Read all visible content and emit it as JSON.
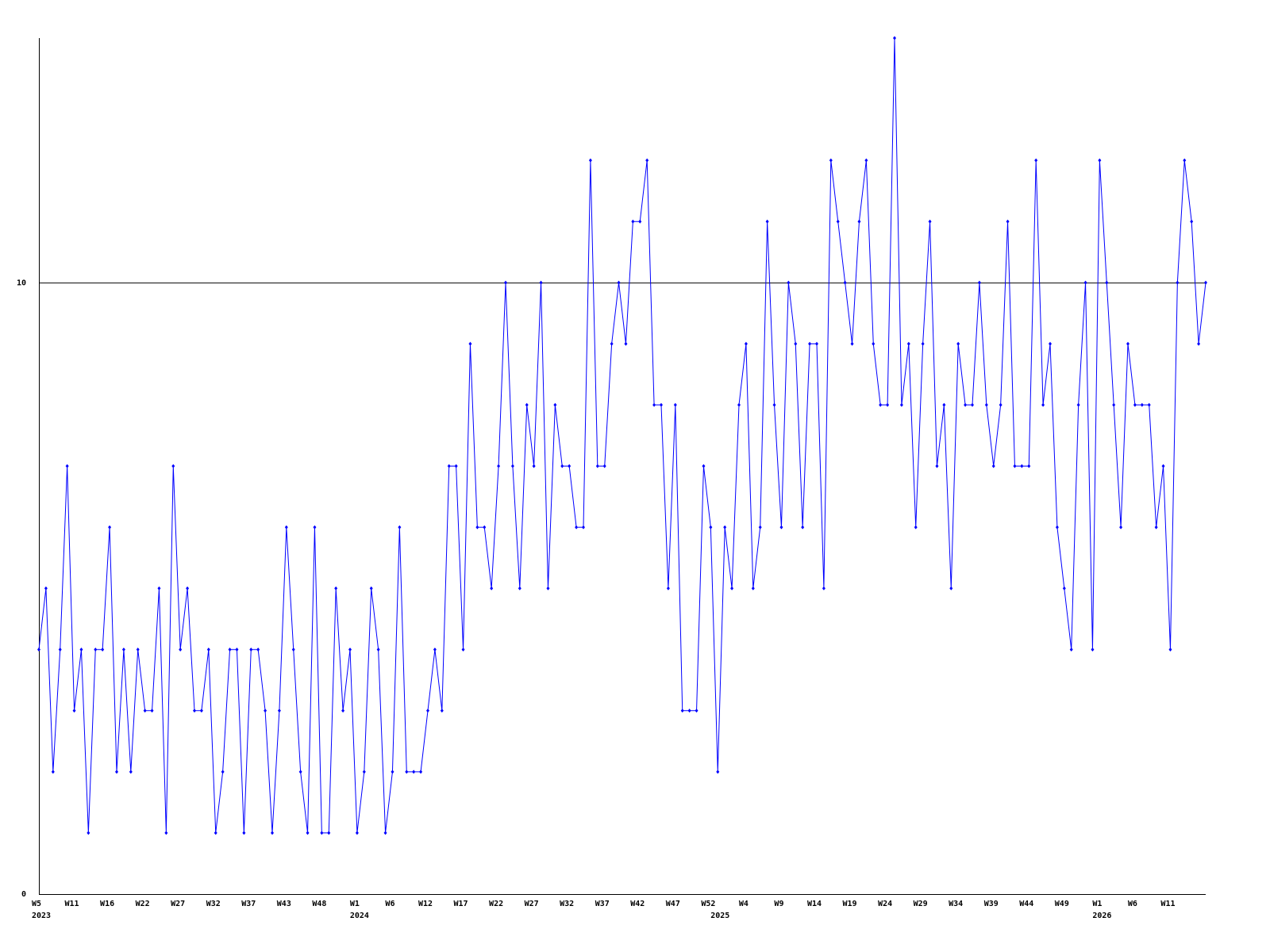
{
  "chart_data": {
    "type": "line",
    "categories": [
      "W5",
      null,
      null,
      null,
      null,
      "W11",
      null,
      null,
      null,
      null,
      "W16",
      null,
      null,
      null,
      null,
      "W22",
      null,
      null,
      null,
      null,
      "W27",
      null,
      null,
      null,
      null,
      "W32",
      null,
      null,
      null,
      null,
      "W37",
      null,
      null,
      null,
      null,
      "W43",
      null,
      null,
      null,
      null,
      "W48",
      null,
      null,
      null,
      null,
      "W1",
      null,
      null,
      null,
      null,
      "W6",
      null,
      null,
      null,
      null,
      "W12",
      null,
      null,
      null,
      null,
      "W17",
      null,
      null,
      null,
      null,
      "W22",
      null,
      null,
      null,
      null,
      "W27",
      null,
      null,
      null,
      null,
      "W32",
      null,
      null,
      null,
      null,
      "W37",
      null,
      null,
      null,
      null,
      "W42",
      null,
      null,
      null,
      null,
      "W47",
      null,
      null,
      null,
      null,
      "W52",
      null,
      null,
      null,
      null,
      "W4",
      null,
      null,
      null,
      null,
      "W9",
      null,
      null,
      null,
      null,
      "W14",
      null,
      null,
      null,
      null,
      "W19",
      null,
      null,
      null,
      null,
      "W24",
      null,
      null,
      null,
      null,
      "W29",
      null,
      null,
      null,
      null,
      "W34",
      null,
      null,
      null,
      null,
      "W39",
      null,
      null,
      null,
      null,
      "W44",
      null,
      null,
      null,
      null,
      "W49",
      null,
      null,
      null,
      null,
      "W1",
      null,
      null,
      null,
      null,
      "W6",
      null,
      null,
      null,
      null,
      "W11",
      null,
      null,
      null,
      null,
      null
    ],
    "years": [
      "2023",
      null,
      null,
      null,
      null,
      null,
      null,
      null,
      null,
      null,
      null,
      null,
      null,
      null,
      null,
      null,
      null,
      null,
      null,
      null,
      null,
      null,
      null,
      null,
      null,
      null,
      null,
      null,
      null,
      null,
      null,
      null,
      null,
      null,
      null,
      null,
      null,
      null,
      null,
      null,
      null,
      null,
      null,
      null,
      null,
      "2024",
      null,
      null,
      null,
      null,
      null,
      null,
      null,
      null,
      null,
      null,
      null,
      null,
      null,
      null,
      null,
      null,
      null,
      null,
      null,
      null,
      null,
      null,
      null,
      null,
      null,
      null,
      null,
      null,
      null,
      null,
      null,
      null,
      null,
      null,
      null,
      null,
      null,
      null,
      null,
      null,
      null,
      null,
      null,
      null,
      null,
      null,
      null,
      null,
      null,
      null,
      "2025",
      null,
      null,
      null,
      null,
      null,
      null,
      null,
      null,
      null,
      null,
      null,
      null,
      null,
      null,
      null,
      null,
      null,
      null,
      null,
      null,
      null,
      null,
      null,
      null,
      null,
      null,
      null,
      null,
      null,
      null,
      null,
      null,
      null,
      null,
      null,
      null,
      null,
      null,
      null,
      null,
      null,
      null,
      null,
      null,
      null,
      null,
      null,
      null,
      null,
      null,
      null,
      null,
      null,
      "2026",
      null,
      null,
      null,
      null,
      null,
      null,
      null,
      null,
      null,
      null,
      null,
      null,
      null,
      null,
      null
    ],
    "values": [
      4,
      5,
      2,
      4,
      7,
      3,
      4,
      1,
      4,
      4,
      6,
      2,
      4,
      2,
      4,
      3,
      3,
      5,
      1,
      7,
      4,
      5,
      3,
      3,
      4,
      1,
      2,
      4,
      4,
      1,
      4,
      4,
      3,
      1,
      3,
      6,
      4,
      2,
      1,
      6,
      1,
      1,
      5,
      3,
      4,
      1,
      2,
      5,
      4,
      1,
      2,
      6,
      2,
      2,
      2,
      3,
      4,
      3,
      7,
      7,
      4,
      9,
      6,
      6,
      5,
      7,
      10,
      7,
      5,
      8,
      7,
      10,
      5,
      8,
      7,
      7,
      6,
      6,
      12,
      7,
      7,
      9,
      10,
      9,
      11,
      11,
      12,
      8,
      8,
      5,
      8,
      3,
      3,
      3,
      7,
      6,
      2,
      6,
      5,
      8,
      9,
      5,
      6,
      11,
      8,
      6,
      10,
      9,
      6,
      9,
      9,
      5,
      12,
      11,
      10,
      9,
      11,
      12,
      9,
      8,
      8,
      14,
      8,
      9,
      6,
      9,
      11,
      7,
      8,
      5,
      9,
      8,
      8,
      10,
      8,
      7,
      8,
      11,
      7,
      7,
      7,
      12,
      8,
      9,
      6,
      5,
      4,
      8,
      10,
      4,
      12,
      10,
      8,
      6,
      9,
      8,
      8,
      8,
      6,
      7,
      4,
      10,
      12,
      11,
      9,
      10
    ],
    "color": "#0000ff",
    "ylim": [
      0,
      14
    ],
    "yticks": [
      0,
      10
    ],
    "grid": true
  }
}
